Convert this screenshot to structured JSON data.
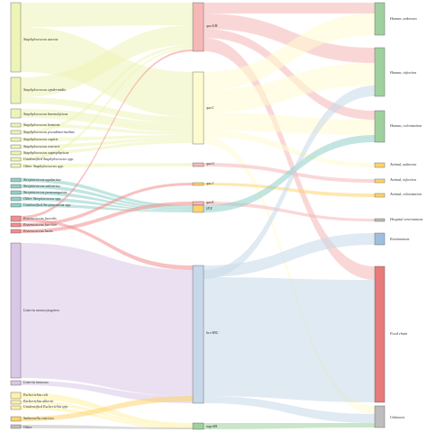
{
  "diagram": {
    "type": "sankey",
    "colors": {
      "staph": "#eef4b6",
      "strep": "#8fd0c8",
      "entero": "#f28e8e",
      "listeria": "#d9c7e6",
      "ecoli": "#fff2a6",
      "salmonella": "#ffd36b",
      "qacAB": "#f6b7b7",
      "qacC": "#fffbd0",
      "bcrABC": "#c7d8ea",
      "human": "#9fd19f",
      "food": "#e77a7a",
      "unknown_t": "#bdbdbd",
      "env": "#9fbfe0"
    },
    "sources": [
      {
        "label": "Staphylococcus aureus",
        "color_key": "staph"
      },
      {
        "label": "Staphylococcus epidermidis",
        "color_key": "staph"
      },
      {
        "label": "Staphylococcus haemolyticus",
        "color_key": "staph"
      },
      {
        "label": "Staphylococcus hominis",
        "color_key": "staph"
      },
      {
        "label": "Staphylococcus pseudintermedius",
        "color_key": "staph"
      },
      {
        "label": "Staphylococcus capitis",
        "color_key": "staph"
      },
      {
        "label": "Staphylococcus warneri",
        "color_key": "staph"
      },
      {
        "label": "Staphylococcus saprophyticus",
        "color_key": "staph"
      },
      {
        "label": "Unidentified Staphylococcus spp.",
        "color_key": "staph"
      },
      {
        "label": "Other Staphylococcus spp.",
        "color_key": "staph"
      },
      {
        "label": "Streptococcus agalactiae",
        "color_key": "strep"
      },
      {
        "label": "Streptococcus salivarius",
        "color_key": "strep"
      },
      {
        "label": "Streptococcus parasanguinis",
        "color_key": "strep"
      },
      {
        "label": "Other Streptococcus spp.",
        "color_key": "strep"
      },
      {
        "label": "Unidentified Streptococcus spp.",
        "color_key": "strep"
      },
      {
        "label": "Enterococcus faecalis",
        "color_key": "entero"
      },
      {
        "label": "Enterococcus faecium",
        "color_key": "entero"
      },
      {
        "label": "Enterococcus lactis",
        "color_key": "entero"
      },
      {
        "label": "Listeria monocytogenes",
        "color_key": "listeria"
      },
      {
        "label": "Listeria innocua",
        "color_key": "listeria"
      },
      {
        "label": "Escherichia coli",
        "color_key": "ecoli"
      },
      {
        "label": "Escherichia albertii",
        "color_key": "ecoli"
      },
      {
        "label": "Unidentified Escherichia spp.",
        "color_key": "ecoli"
      },
      {
        "label": "Salmonella enterica",
        "color_key": "salmonella"
      },
      {
        "label": "Other",
        "color_key": "unknown_t"
      }
    ],
    "genes": [
      {
        "label": "qacA/B",
        "color_key": "qacAB"
      },
      {
        "label": "qacC",
        "color_key": "qacC"
      },
      {
        "label": "qacG",
        "color_key": "qacAB"
      },
      {
        "label": "qacJ",
        "color_key": "salmonella"
      },
      {
        "label": "qacE",
        "color_key": "qacAB"
      },
      {
        "label": "IFX",
        "color_key": "salmonella"
      },
      {
        "label": "bcrABC",
        "color_key": "bcrABC"
      },
      {
        "label": "mgrAB",
        "color_key": "human"
      }
    ],
    "targets": [
      {
        "label": "Human, unknown",
        "color_key": "human"
      },
      {
        "label": "Human, infection",
        "color_key": "human"
      },
      {
        "label": "Human, colonization",
        "color_key": "human"
      },
      {
        "label": "Animal, unknown",
        "color_key": "salmonella"
      },
      {
        "label": "Animal, infection",
        "color_key": "salmonella"
      },
      {
        "label": "Animal, colonization",
        "color_key": "salmonella"
      },
      {
        "label": "Hospital environment",
        "color_key": "unknown_t"
      },
      {
        "label": "Environment",
        "color_key": "env"
      },
      {
        "label": "Food chain",
        "color_key": "food"
      },
      {
        "label": "Unknown",
        "color_key": "unknown_t"
      }
    ]
  }
}
